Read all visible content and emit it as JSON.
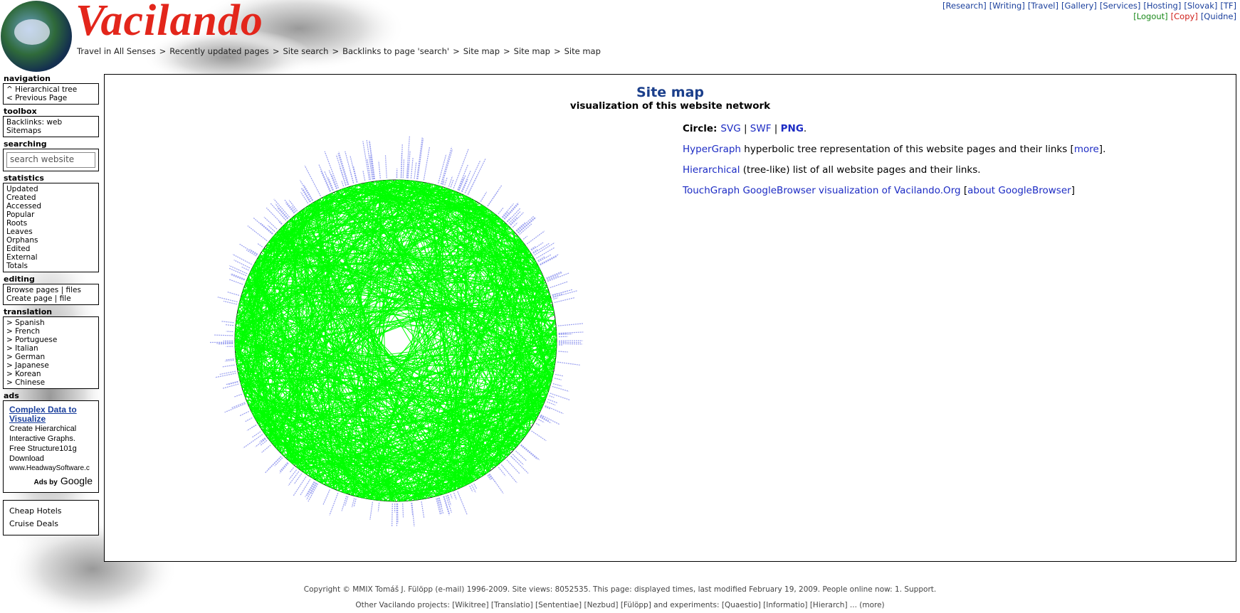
{
  "header": {
    "logo": "Vacilando",
    "breadcrumb": [
      "Travel in All Senses",
      "Recently updated pages",
      "Site search",
      "Backlinks to page 'search'",
      "Site map",
      "Site map",
      "Site map"
    ],
    "breadcrumb_separator": ">",
    "top_links": [
      [
        {
          "text": "[Research]",
          "color": "#1a3f9c"
        },
        {
          "text": "[Writing]",
          "color": "#1a3f9c"
        },
        {
          "text": "[Travel]",
          "color": "#1a3f9c"
        },
        {
          "text": "[Gallery]",
          "color": "#1a3f9c"
        },
        {
          "text": "[Services]",
          "color": "#1a3f9c"
        },
        {
          "text": "[Hosting]",
          "color": "#1a3f9c"
        },
        {
          "text": "[Slovak]",
          "color": "#1a3f9c"
        },
        {
          "text": "[TF]",
          "color": "#1a3f9c"
        }
      ],
      [
        {
          "text": "[Logout]",
          "color": "#1a8a1a"
        },
        {
          "text": "[Copy]",
          "color": "#d0201a"
        },
        {
          "text": "[Quidne]",
          "color": "#1a3f9c"
        }
      ]
    ]
  },
  "sidebar": {
    "sections": [
      {
        "title": "navigation",
        "items": [
          "^ Hierarchical tree",
          "< Previous Page"
        ]
      },
      {
        "title": "toolbox",
        "items": [
          "Backlinks: web",
          "Sitemaps"
        ]
      },
      {
        "title": "searching",
        "search_placeholder": "search website"
      },
      {
        "title": "statistics",
        "items": [
          "Updated",
          "Created",
          "Accessed",
          "Popular",
          "Roots",
          "Leaves",
          "Orphans",
          "Edited",
          "External",
          "Totals"
        ]
      },
      {
        "title": "editing",
        "items": [
          "Browse pages | files",
          "Create page | file"
        ]
      },
      {
        "title": "translation",
        "items": [
          "> Spanish",
          "> French",
          "> Portuguese",
          "> Italian",
          "> German",
          "> Japanese",
          "> Korean",
          "> Chinese"
        ]
      },
      {
        "title": "ads",
        "ad_title": "Complex Data to Visualize",
        "ad_lines": [
          "Create Hierarchical",
          "Interactive Graphs.",
          "Free Structure101g",
          "Download"
        ],
        "ad_url": "www.HeadwaySoftware.c",
        "ads_by": "Ads by",
        "google": "Google"
      }
    ],
    "extra_links": [
      "Cheap Hotels",
      "Cruise Deals"
    ]
  },
  "main": {
    "title": "Site map",
    "subtitle": "visualization of this website network",
    "paragraphs": [
      [
        {
          "text": "Circle:",
          "bold": true
        },
        {
          "text": "SVG",
          "link": true
        },
        {
          "text": " | "
        },
        {
          "text": "SWF",
          "link": true
        },
        {
          "text": " | "
        },
        {
          "text": "PNG",
          "link": true,
          "bold": true
        },
        {
          "text": "."
        }
      ],
      [
        {
          "text": "HyperGraph",
          "link": true
        },
        {
          "text": " hyperbolic tree representation of this website pages and their links ["
        },
        {
          "text": "more",
          "link": true
        },
        {
          "text": "]."
        }
      ],
      [
        {
          "text": "Hierarchical",
          "link": true
        },
        {
          "text": " (tree-like) list of all website pages and their links."
        }
      ],
      [
        {
          "text": "TouchGraph GoogleBrowser visualization of Vacilando.Org",
          "link": true
        },
        {
          "text": " ["
        },
        {
          "text": "about GoogleBrowser",
          "link": true
        },
        {
          "text": "]"
        }
      ]
    ]
  },
  "footer": {
    "lines": [
      "Copyright © MMIX Tomáš J. Fülöpp (e-mail) 1996-2009. Site views: 8052535. This page: displayed times, last modified February 19, 2009. People online now: 1. Support.",
      "Other Vacilando projects: [Wikitree] [Translatio] [Sententiae] [Nezbud] [Fülöpp] and experiments: [Quaestio] [Informatio] [Hierarch] ... (more)"
    ]
  }
}
